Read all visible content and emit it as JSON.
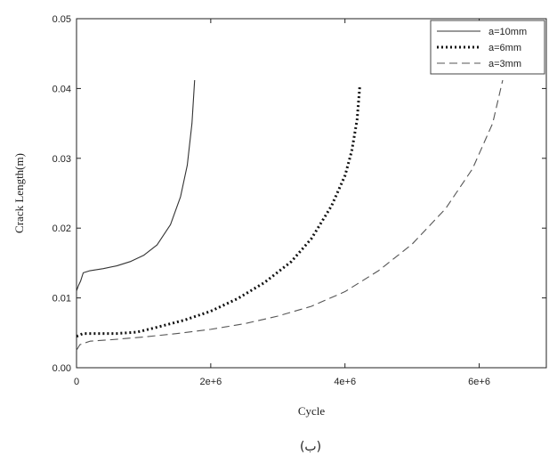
{
  "chart_data": {
    "type": "line",
    "title": "",
    "xlabel": "Cycle",
    "ylabel": "Crack Length(m)",
    "caption": "(ب)",
    "xlim": [
      0,
      7000000
    ],
    "ylim": [
      0,
      0.05
    ],
    "xticks": [
      0,
      2000000,
      4000000,
      6000000
    ],
    "xtick_labels": [
      "0",
      "2e+6",
      "4e+6",
      "6e+6"
    ],
    "yticks": [
      0,
      0.01,
      0.02,
      0.03,
      0.04,
      0.05
    ],
    "ytick_labels": [
      "0.00",
      "0.01",
      "0.02",
      "0.03",
      "0.04",
      "0.05"
    ],
    "grid": false,
    "legend_position": "top-right",
    "series": [
      {
        "name": "a=10mm",
        "style": "solid",
        "color": "#333333",
        "x": [
          0,
          30000,
          60000,
          100000,
          200000,
          400000,
          600000,
          800000,
          1000000,
          1200000,
          1400000,
          1550000,
          1650000,
          1720000,
          1760000
        ],
        "y": [
          0.011,
          0.0118,
          0.0124,
          0.0136,
          0.0139,
          0.0142,
          0.0146,
          0.0152,
          0.0161,
          0.0176,
          0.0205,
          0.0245,
          0.029,
          0.035,
          0.0412
        ]
      },
      {
        "name": "a=6mm",
        "style": "dotted",
        "color": "#111111",
        "x": [
          0,
          100000,
          300000,
          600000,
          900000,
          1200000,
          1600000,
          2000000,
          2400000,
          2800000,
          3200000,
          3500000,
          3800000,
          4000000,
          4100000,
          4180000,
          4220000
        ],
        "y": [
          0.0045,
          0.0049,
          0.0049,
          0.0049,
          0.0051,
          0.0058,
          0.0068,
          0.0081,
          0.0099,
          0.0122,
          0.0152,
          0.0185,
          0.0232,
          0.0275,
          0.031,
          0.0355,
          0.0402
        ]
      },
      {
        "name": "a=3mm",
        "style": "dashed",
        "color": "#555555",
        "x": [
          0,
          50000,
          200000,
          500000,
          1000000,
          1500000,
          2000000,
          2500000,
          3000000,
          3500000,
          4000000,
          4500000,
          5000000,
          5500000,
          5900000,
          6200000,
          6350000
        ],
        "y": [
          0.0025,
          0.0033,
          0.0038,
          0.004,
          0.0044,
          0.0049,
          0.0055,
          0.0063,
          0.0074,
          0.0088,
          0.0109,
          0.0139,
          0.0177,
          0.0228,
          0.0285,
          0.035,
          0.0412
        ]
      }
    ]
  }
}
